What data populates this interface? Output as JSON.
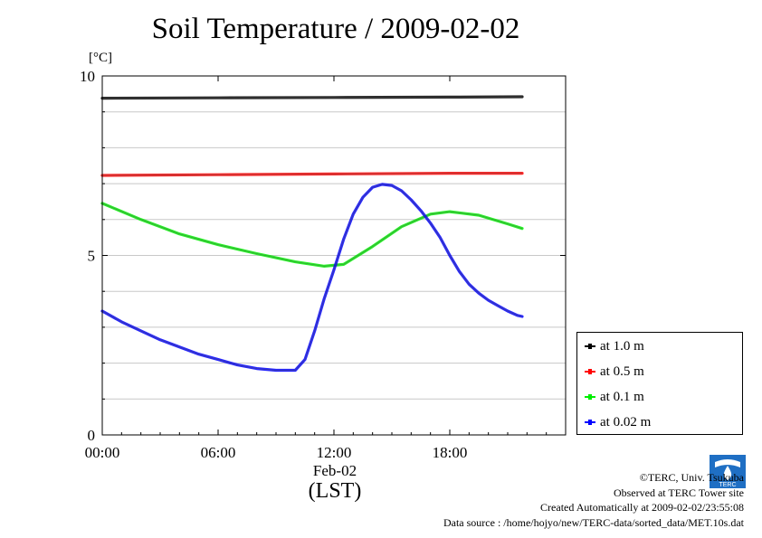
{
  "title": "Soil Temperature / 2009-02-02",
  "unit_label": "[°C]",
  "date_label": "Feb-02",
  "xaxis_label": "(LST)",
  "credits": [
    "©TERC, Univ. Tsukuba",
    "Observed at TERC Tower site",
    "Created Automatically at 2009-02-02/23:55:08",
    "Data source : /home/hojyo/new/TERC-data/sorted_data/MET.10s.dat"
  ],
  "logo_text": "TERC",
  "legend": [
    {
      "label": "at 1.0 m",
      "color": "#000000"
    },
    {
      "label": "at 0.5 m",
      "color": "#ff0000"
    },
    {
      "label": "at 0.1 m",
      "color": "#00ee00"
    },
    {
      "label": "at 0.02 m",
      "color": "#0000ff"
    }
  ],
  "chart_data": {
    "type": "line",
    "title": "Soil Temperature / 2009-02-02",
    "ylabel": "[°C]",
    "xlabel": "(LST)",
    "xlim": [
      0,
      24
    ],
    "ylim": [
      0,
      10
    ],
    "xticks": [
      0,
      6,
      12,
      18
    ],
    "xtick_labels": [
      "00:00",
      "06:00",
      "12:00",
      "18:00"
    ],
    "yticks": [
      0,
      5,
      10
    ],
    "ytick_labels": [
      "0",
      "5",
      "10"
    ],
    "grid": true,
    "legend_position": "right",
    "series": [
      {
        "name": "at 1.0 m",
        "color": "#000000",
        "x": [
          0,
          6,
          12,
          18,
          21.75
        ],
        "y": [
          9.38,
          9.39,
          9.4,
          9.41,
          9.42
        ]
      },
      {
        "name": "at 0.5 m",
        "color": "#ff0000",
        "x": [
          0,
          6,
          12,
          18,
          21.75
        ],
        "y": [
          7.23,
          7.25,
          7.27,
          7.29,
          7.29
        ]
      },
      {
        "name": "at 0.1 m",
        "color": "#00ee00",
        "x": [
          0,
          2,
          4,
          6,
          8,
          10,
          11.5,
          12.5,
          14,
          15.5,
          17,
          18,
          19.5,
          21,
          21.75
        ],
        "y": [
          6.45,
          6.0,
          5.6,
          5.3,
          5.05,
          4.82,
          4.7,
          4.75,
          5.25,
          5.8,
          6.15,
          6.22,
          6.12,
          5.88,
          5.75
        ]
      },
      {
        "name": "at 0.02 m",
        "color": "#0000ff",
        "x": [
          0,
          1,
          2,
          3,
          4,
          5,
          6,
          7,
          8,
          9,
          10,
          10.5,
          11,
          11.5,
          12,
          12.5,
          13,
          13.5,
          14,
          14.5,
          15,
          15.5,
          16,
          16.5,
          17,
          17.5,
          18,
          18.5,
          19,
          19.5,
          20,
          20.5,
          21,
          21.5,
          21.75
        ],
        "y": [
          3.45,
          3.15,
          2.9,
          2.65,
          2.45,
          2.25,
          2.1,
          1.95,
          1.85,
          1.8,
          1.8,
          2.1,
          2.9,
          3.8,
          4.6,
          5.45,
          6.15,
          6.62,
          6.9,
          6.98,
          6.95,
          6.8,
          6.55,
          6.25,
          5.9,
          5.5,
          5.0,
          4.55,
          4.2,
          3.95,
          3.75,
          3.6,
          3.45,
          3.33,
          3.3
        ]
      }
    ]
  }
}
